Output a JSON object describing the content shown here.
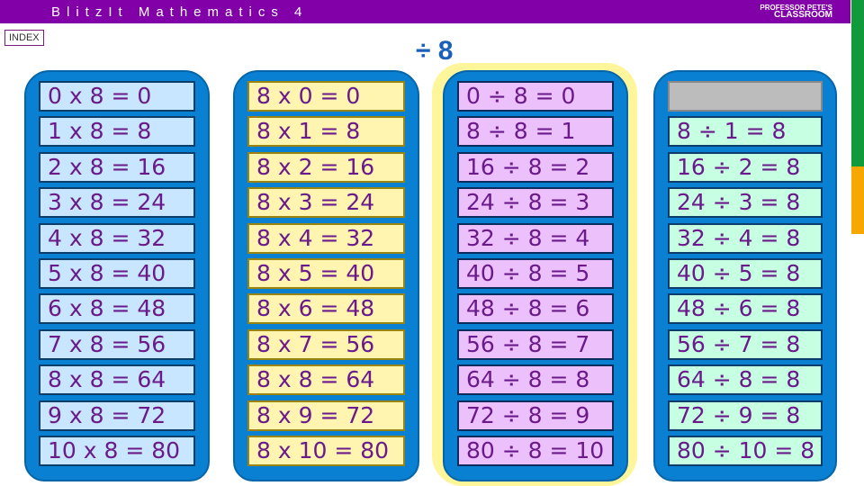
{
  "header": {
    "title": "BlitzIt Mathematics 4",
    "logo": "PROFESSOR PETE'S CLASSROOM"
  },
  "index_label": "INDEX",
  "page_title": "÷ 8",
  "colors": {
    "header": "#8200a8",
    "panel": "#0a80d2",
    "col1": "#c8e6ff",
    "col2": "#fff4b0",
    "col3": "#ecc0fb",
    "col4": "#c6ffe2",
    "text": "#6a1a8a",
    "highlight": "#fff59a"
  },
  "columns": [
    [
      "0 x 8 = 0",
      "1 x 8 = 8",
      "2 x 8 = 16",
      "3 x 8 = 24",
      "4 x 8 = 32",
      "5 x 8 = 40",
      "6 x 8 = 48",
      "7 x 8 = 56",
      "8 x 8 = 64",
      "9 x 8 = 72",
      "10 x 8 = 80"
    ],
    [
      "8 x 0 = 0",
      "8 x 1 = 8",
      "8 x 2 = 16",
      "8 x 3 = 24",
      "8 x 4 = 32",
      "8 x 5 = 40",
      "8 x 6 = 48",
      "8 x 7 = 56",
      "8 x 8 = 64",
      "8 x 9 = 72",
      "8 x 10 = 80"
    ],
    [
      "0 ÷ 8 = 0",
      "8 ÷ 8 = 1",
      "16 ÷ 8 = 2",
      "24 ÷ 8 = 3",
      "32 ÷ 8 = 4",
      "40 ÷ 8 = 5",
      "48 ÷ 8 = 6",
      "56 ÷ 8 = 7",
      "64 ÷ 8 = 8",
      "72 ÷ 8 = 9",
      "80 ÷ 8 = 10"
    ],
    [
      "",
      "8 ÷ 1 = 8",
      "16 ÷ 2 = 8",
      "24 ÷ 3 = 8",
      "32 ÷ 4 = 8",
      "40 ÷ 5 = 8",
      "48 ÷ 6 = 8",
      "56 ÷ 7 = 8",
      "64 ÷ 8 = 8",
      "72 ÷ 9 = 8",
      "80 ÷ 10 = 8"
    ]
  ]
}
